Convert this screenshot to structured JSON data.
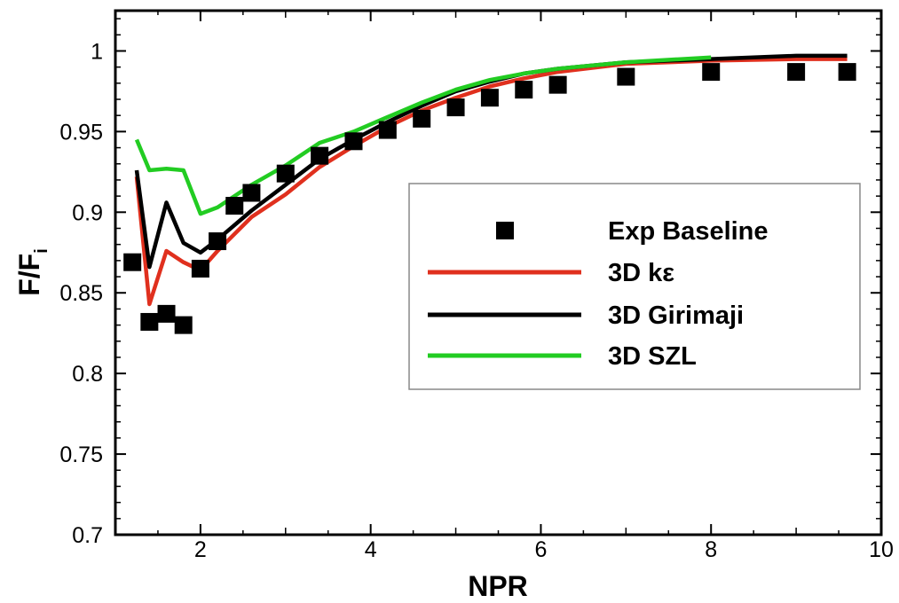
{
  "chart_data": {
    "type": "line",
    "xlabel": "NPR",
    "ylabel_main": "F/F",
    "ylabel_sub": "i",
    "xlim": [
      1,
      10
    ],
    "ylim": [
      0.7,
      1.025
    ],
    "xticks": [
      2,
      4,
      6,
      8,
      10
    ],
    "xtick_labels": [
      "2",
      "4",
      "6",
      "8",
      "10"
    ],
    "yticks": [
      0.7,
      0.75,
      0.8,
      0.85,
      0.9,
      0.95,
      1.0
    ],
    "ytick_labels": [
      "0.7",
      "0.75",
      "0.8",
      "0.85",
      "0.9",
      "0.95",
      "1"
    ],
    "grid": false,
    "legend_position": "center-right",
    "series": [
      {
        "name": "Exp Baseline",
        "kind": "markers",
        "color": "#000000",
        "x": [
          1.2,
          1.4,
          1.6,
          1.8,
          2.0,
          2.2,
          2.4,
          2.6,
          3.0,
          3.4,
          3.8,
          4.2,
          4.6,
          5.0,
          5.4,
          5.8,
          6.2,
          7.0,
          8.0,
          9.0,
          9.6
        ],
        "y": [
          0.869,
          0.832,
          0.837,
          0.83,
          0.865,
          0.882,
          0.904,
          0.912,
          0.924,
          0.935,
          0.944,
          0.951,
          0.958,
          0.965,
          0.971,
          0.976,
          0.979,
          0.984,
          0.987,
          0.987,
          0.987
        ]
      },
      {
        "name": "3D kε",
        "kind": "line",
        "color": "#e0301e",
        "x": [
          1.25,
          1.4,
          1.6,
          1.8,
          2.0,
          2.2,
          2.6,
          3.0,
          3.4,
          3.8,
          4.2,
          4.6,
          5.0,
          5.4,
          5.8,
          6.2,
          7.0,
          8.0,
          9.0,
          9.6
        ],
        "y": [
          0.922,
          0.843,
          0.876,
          0.869,
          0.864,
          0.876,
          0.897,
          0.911,
          0.928,
          0.941,
          0.953,
          0.963,
          0.971,
          0.978,
          0.983,
          0.987,
          0.992,
          0.994,
          0.995,
          0.995
        ]
      },
      {
        "name": "3D Girimaji",
        "kind": "line",
        "color": "#000000",
        "x": [
          1.25,
          1.4,
          1.6,
          1.8,
          2.0,
          2.2,
          2.6,
          3.0,
          3.4,
          3.8,
          4.2,
          4.6,
          5.0,
          5.4,
          5.8,
          6.2,
          7.0,
          8.0,
          9.0,
          9.6
        ],
        "y": [
          0.926,
          0.866,
          0.906,
          0.881,
          0.875,
          0.883,
          0.901,
          0.917,
          0.933,
          0.945,
          0.956,
          0.966,
          0.975,
          0.981,
          0.986,
          0.989,
          0.993,
          0.995,
          0.997,
          0.997
        ]
      },
      {
        "name": "3D SZL",
        "kind": "line",
        "color": "#22cc22",
        "x": [
          1.25,
          1.4,
          1.6,
          1.8,
          2.0,
          2.2,
          2.6,
          3.0,
          3.4,
          3.8,
          4.2,
          4.6,
          5.0,
          5.4,
          5.8,
          6.2,
          7.0,
          8.0
        ],
        "y": [
          0.945,
          0.926,
          0.927,
          0.926,
          0.899,
          0.903,
          0.917,
          0.929,
          0.943,
          0.95,
          0.959,
          0.968,
          0.976,
          0.982,
          0.986,
          0.989,
          0.993,
          0.996
        ]
      }
    ]
  }
}
